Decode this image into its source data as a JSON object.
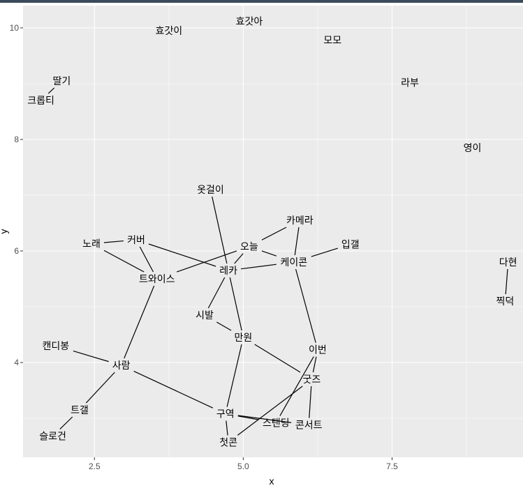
{
  "chart_data": {
    "type": "network",
    "xlabel": "x",
    "ylabel": "y",
    "xlim": [
      1.3,
      9.7
    ],
    "ylim": [
      2.3,
      10.4
    ],
    "xticks": [
      2.5,
      5.0,
      7.5
    ],
    "xtick_labels": [
      "2.5",
      "5.0",
      "7.5"
    ],
    "yticks": [
      4,
      6,
      8,
      10
    ],
    "ytick_labels": [
      "4",
      "6",
      "8",
      "10"
    ],
    "grid": true,
    "panel_background": "#ebebeb",
    "grid_color": "#ffffff",
    "edge_color": "#000000",
    "nodes": [
      {
        "label": "효갓아",
        "x": 5.1,
        "y": 10.12
      },
      {
        "label": "효갓이",
        "x": 3.75,
        "y": 9.95
      },
      {
        "label": "모모",
        "x": 6.5,
        "y": 9.78
      },
      {
        "label": "딸기",
        "x": 1.95,
        "y": 9.05
      },
      {
        "label": "라부",
        "x": 7.8,
        "y": 9.02
      },
      {
        "label": "크롭티",
        "x": 1.6,
        "y": 8.7
      },
      {
        "label": "영이",
        "x": 8.85,
        "y": 7.85
      },
      {
        "label": "옷걸이",
        "x": 4.45,
        "y": 7.1
      },
      {
        "label": "카메라",
        "x": 5.95,
        "y": 6.55
      },
      {
        "label": "노래",
        "x": 2.45,
        "y": 6.13
      },
      {
        "label": "커버",
        "x": 3.2,
        "y": 6.2
      },
      {
        "label": "오늘",
        "x": 5.1,
        "y": 6.08
      },
      {
        "label": "입갤",
        "x": 6.8,
        "y": 6.12
      },
      {
        "label": "케이콘",
        "x": 5.85,
        "y": 5.8
      },
      {
        "label": "다현",
        "x": 9.45,
        "y": 5.8
      },
      {
        "label": "트와이스",
        "x": 3.55,
        "y": 5.5
      },
      {
        "label": "레카",
        "x": 4.75,
        "y": 5.65
      },
      {
        "label": "찍덕",
        "x": 9.4,
        "y": 5.1
      },
      {
        "label": "시발",
        "x": 4.35,
        "y": 4.85
      },
      {
        "label": "만원",
        "x": 5.0,
        "y": 4.45
      },
      {
        "label": "이번",
        "x": 6.25,
        "y": 4.23
      },
      {
        "label": "캔디봉",
        "x": 1.85,
        "y": 4.3
      },
      {
        "label": "사람",
        "x": 2.95,
        "y": 3.95
      },
      {
        "label": "굿즈",
        "x": 6.15,
        "y": 3.7
      },
      {
        "label": "트갤",
        "x": 2.25,
        "y": 3.15
      },
      {
        "label": "구역",
        "x": 4.7,
        "y": 3.08
      },
      {
        "label": "스탠딩",
        "x": 5.55,
        "y": 2.92
      },
      {
        "label": "콘서트",
        "x": 6.1,
        "y": 2.88
      },
      {
        "label": "슬로건",
        "x": 1.8,
        "y": 2.68
      },
      {
        "label": "첫콘",
        "x": 4.75,
        "y": 2.57
      }
    ],
    "edges": [
      [
        "딸기",
        "크롭티"
      ],
      [
        "노래",
        "커버"
      ],
      [
        "노래",
        "트와이스"
      ],
      [
        "커버",
        "트와이스"
      ],
      [
        "커버",
        "레카"
      ],
      [
        "트와이스",
        "오늘"
      ],
      [
        "트와이스",
        "사람"
      ],
      [
        "옷걸이",
        "레카"
      ],
      [
        "카메라",
        "오늘"
      ],
      [
        "카메라",
        "케이콘"
      ],
      [
        "오늘",
        "레카"
      ],
      [
        "오늘",
        "케이콘"
      ],
      [
        "입갤",
        "케이콘"
      ],
      [
        "케이콘",
        "레카"
      ],
      [
        "케이콘",
        "이번"
      ],
      [
        "다현",
        "찍덕"
      ],
      [
        "레카",
        "시발"
      ],
      [
        "레카",
        "만원"
      ],
      [
        "시발",
        "만원"
      ],
      [
        "만원",
        "구역"
      ],
      [
        "만원",
        "굿즈"
      ],
      [
        "이번",
        "굿즈"
      ],
      [
        "이번",
        "스탠딩"
      ],
      [
        "굿즈",
        "콘서트"
      ],
      [
        "굿즈",
        "첫콘"
      ],
      [
        "캔디봉",
        "사람"
      ],
      [
        "사람",
        "트갤"
      ],
      [
        "사람",
        "구역"
      ],
      [
        "트갤",
        "슬로건"
      ],
      [
        "구역",
        "스탠딩"
      ],
      [
        "구역",
        "콘서트"
      ],
      [
        "구역",
        "첫콘"
      ]
    ]
  }
}
